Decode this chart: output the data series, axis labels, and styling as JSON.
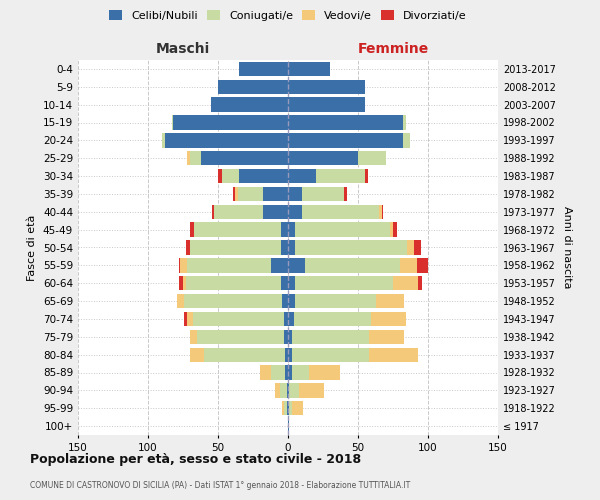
{
  "age_groups": [
    "100+",
    "95-99",
    "90-94",
    "85-89",
    "80-84",
    "75-79",
    "70-74",
    "65-69",
    "60-64",
    "55-59",
    "50-54",
    "45-49",
    "40-44",
    "35-39",
    "30-34",
    "25-29",
    "20-24",
    "15-19",
    "10-14",
    "5-9",
    "0-4"
  ],
  "birth_years": [
    "≤ 1917",
    "1918-1922",
    "1923-1927",
    "1928-1932",
    "1933-1937",
    "1938-1942",
    "1943-1947",
    "1948-1952",
    "1953-1957",
    "1958-1962",
    "1963-1967",
    "1968-1972",
    "1973-1977",
    "1978-1982",
    "1983-1987",
    "1988-1992",
    "1993-1997",
    "1998-2002",
    "2003-2007",
    "2008-2012",
    "2013-2017"
  ],
  "male": {
    "celibi": [
      0,
      1,
      1,
      2,
      2,
      3,
      3,
      4,
      5,
      12,
      5,
      5,
      18,
      18,
      35,
      62,
      88,
      82,
      55,
      50,
      35
    ],
    "coniugati": [
      0,
      2,
      5,
      10,
      58,
      62,
      65,
      70,
      68,
      60,
      65,
      62,
      35,
      18,
      12,
      8,
      2,
      1,
      0,
      0,
      0
    ],
    "vedovi": [
      0,
      1,
      3,
      8,
      10,
      5,
      4,
      5,
      2,
      5,
      0,
      0,
      0,
      2,
      0,
      2,
      0,
      0,
      0,
      0,
      0
    ],
    "divorziati": [
      0,
      0,
      0,
      0,
      0,
      0,
      2,
      0,
      3,
      1,
      3,
      3,
      1,
      1,
      3,
      0,
      0,
      0,
      0,
      0,
      0
    ]
  },
  "female": {
    "nubili": [
      1,
      1,
      1,
      3,
      3,
      3,
      4,
      5,
      5,
      12,
      5,
      5,
      10,
      10,
      20,
      50,
      82,
      82,
      55,
      55,
      30
    ],
    "coniugate": [
      0,
      2,
      7,
      12,
      55,
      55,
      55,
      58,
      70,
      68,
      80,
      68,
      55,
      30,
      35,
      20,
      5,
      2,
      0,
      0,
      0
    ],
    "vedove": [
      0,
      8,
      18,
      22,
      35,
      25,
      25,
      20,
      18,
      12,
      5,
      2,
      2,
      0,
      0,
      0,
      0,
      0,
      0,
      0,
      0
    ],
    "divorziate": [
      0,
      0,
      0,
      0,
      0,
      0,
      0,
      0,
      3,
      8,
      5,
      3,
      1,
      2,
      2,
      0,
      0,
      0,
      0,
      0,
      0
    ]
  },
  "colors": {
    "celibi": "#3a6fa8",
    "coniugati": "#c8dba2",
    "vedovi": "#f5c97a",
    "divorziati": "#d9302e"
  },
  "xlim": 150,
  "title": "Popolazione per età, sesso e stato civile - 2018",
  "subtitle": "COMUNE DI CASTRONOVO DI SICILIA (PA) - Dati ISTAT 1° gennaio 2018 - Elaborazione TUTTITALIA.IT",
  "ylabel_left": "Fasce di età",
  "ylabel_right": "Anni di nascita",
  "header_left": "Maschi",
  "header_right": "Femmine",
  "background_color": "#eeeeee",
  "plot_bg": "#ffffff"
}
